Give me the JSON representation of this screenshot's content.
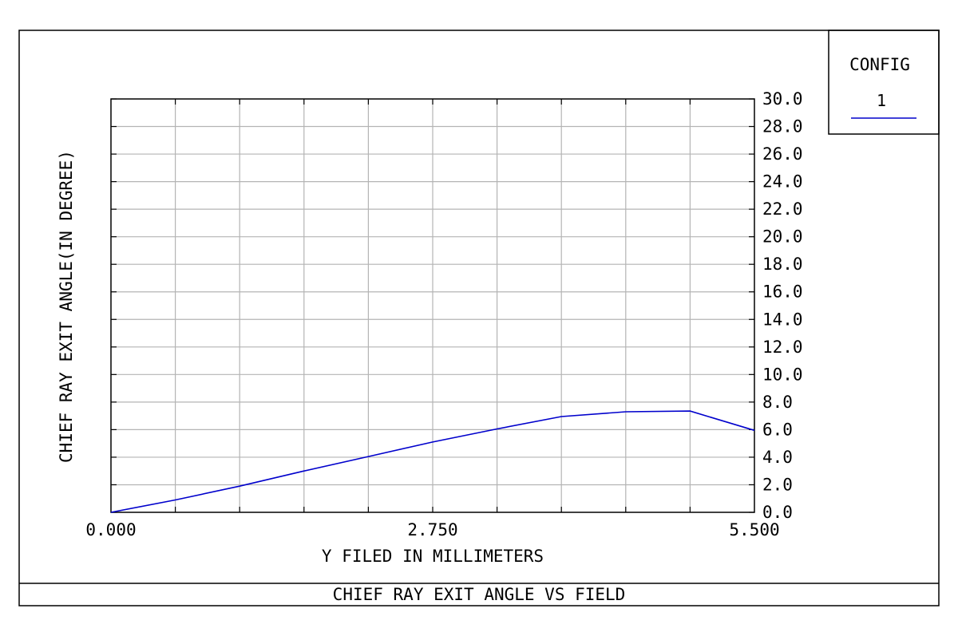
{
  "legend": {
    "title": "CONFIG",
    "entries": [
      {
        "label": "1",
        "color": "#0000cc"
      }
    ]
  },
  "footer": {
    "title": "CHIEF RAY EXIT ANGLE VS FIELD"
  },
  "chart_data": {
    "type": "line",
    "title": "CHIEF RAY EXIT ANGLE VS FIELD",
    "xlabel": "Y FILED IN MILLIMETERS",
    "ylabel": "CHIEF RAY EXIT ANGLE(IN DEGREE)",
    "xlim": [
      0,
      5.5
    ],
    "ylim": [
      0,
      30
    ],
    "x_tick_labels": [
      "0.000",
      "2.750",
      "5.500"
    ],
    "x_tick_values": [
      0,
      2.75,
      5.5
    ],
    "y_tick_labels": [
      "0.0",
      "2.0",
      "4.0",
      "6.0",
      "8.0",
      "10.0",
      "12.0",
      "14.0",
      "16.0",
      "18.0",
      "20.0",
      "22.0",
      "24.0",
      "26.0",
      "28.0",
      "30.0"
    ],
    "y_tick_values": [
      0,
      2,
      4,
      6,
      8,
      10,
      12,
      14,
      16,
      18,
      20,
      22,
      24,
      26,
      28,
      30
    ],
    "y_axis_position": "right",
    "grid": true,
    "grid_x_divisions": 10,
    "legend_position": "top-right",
    "series": [
      {
        "name": "1",
        "color": "#0000cc",
        "x": [
          0.0,
          0.55,
          1.1,
          1.65,
          2.2,
          2.75,
          3.3,
          3.85,
          4.4,
          4.95,
          5.5
        ],
        "y": [
          0.0,
          0.9,
          1.9,
          3.0,
          4.05,
          5.1,
          6.05,
          6.95,
          7.3,
          7.35,
          5.95
        ]
      }
    ]
  }
}
